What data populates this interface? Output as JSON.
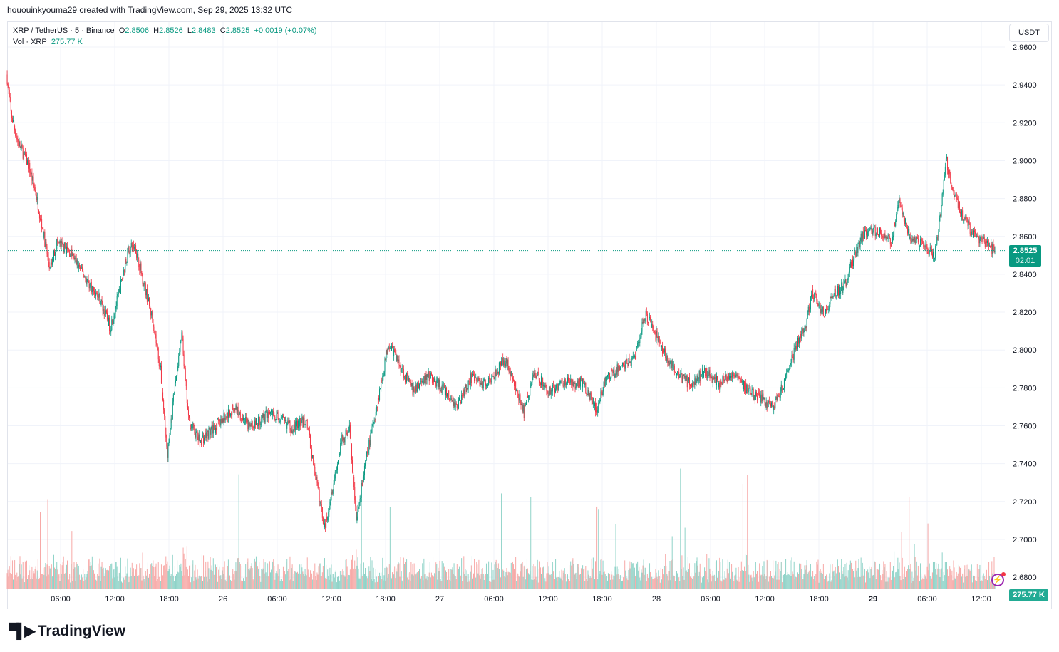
{
  "credit": "hououinkyouma29 created with TradingView.com, Sep 29, 2025 13:32 UTC",
  "legend": {
    "symbol": "XRP / TetherUS · 5 · Binance",
    "o_label": "O",
    "o": "2.8506",
    "h_label": "H",
    "h": "2.8526",
    "l_label": "L",
    "l": "2.8483",
    "c_label": "C",
    "c": "2.8525",
    "change": "+0.0019 (+0.07%)",
    "vol_label": "Vol · XRP",
    "vol": "275.77 K"
  },
  "currency_button": "USDT",
  "last_price": "2.8525",
  "countdown": "02:01",
  "volume_tag": "275.77 K",
  "logo": "TradingView",
  "colors": {
    "up": "#089981",
    "down": "#f23645",
    "vol_up": "#8fd3c8",
    "vol_down": "#f7a9a7",
    "accent": "#089981",
    "indicator": "#9c27b0"
  },
  "icons": {
    "alert": "lightning-bolt-icon",
    "logo": "tradingview-logo-icon"
  },
  "chart_data": {
    "type": "candlestick",
    "interval_minutes": 5,
    "ylim": [
      2.68,
      2.965
    ],
    "yticks": [
      "2.6800",
      "2.7000",
      "2.7200",
      "2.7400",
      "2.7600",
      "2.7800",
      "2.8000",
      "2.8200",
      "2.8400",
      "2.8600",
      "2.8800",
      "2.9000",
      "2.9200",
      "2.9400",
      "2.9600"
    ],
    "xticks": [
      {
        "label": "06:00",
        "t": "25 06:00"
      },
      {
        "label": "12:00",
        "t": "25 12:00"
      },
      {
        "label": "18:00",
        "t": "25 18:00"
      },
      {
        "label": "26",
        "t": "26 00:00"
      },
      {
        "label": "06:00",
        "t": "26 06:00"
      },
      {
        "label": "12:00",
        "t": "26 12:00"
      },
      {
        "label": "18:00",
        "t": "26 18:00"
      },
      {
        "label": "27",
        "t": "27 00:00"
      },
      {
        "label": "06:00",
        "t": "27 06:00"
      },
      {
        "label": "12:00",
        "t": "27 12:00"
      },
      {
        "label": "18:00",
        "t": "27 18:00"
      },
      {
        "label": "28",
        "t": "28 00:00"
      },
      {
        "label": "06:00",
        "t": "28 06:00"
      },
      {
        "label": "12:00",
        "t": "28 12:00"
      },
      {
        "label": "18:00",
        "t": "28 18:00"
      },
      {
        "label": "29",
        "t": "29 00:00"
      },
      {
        "label": "06:00",
        "t": "29 06:00"
      },
      {
        "label": "12:00",
        "t": "29 12:00"
      }
    ],
    "close_path": [
      [
        "25 00:05",
        2.9435
      ],
      [
        "25 00:30",
        2.925
      ],
      [
        "25 01:15",
        2.91
      ],
      [
        "25 02:25",
        2.898
      ],
      [
        "25 03:15",
        2.883
      ],
      [
        "25 04:00",
        2.864
      ],
      [
        "25 04:50",
        2.842
      ],
      [
        "25 05:35",
        2.857
      ],
      [
        "25 07:10",
        2.851
      ],
      [
        "25 08:45",
        2.838
      ],
      [
        "25 10:20",
        2.827
      ],
      [
        "25 11:30",
        2.812
      ],
      [
        "25 12:20",
        2.827
      ],
      [
        "25 13:30",
        2.853
      ],
      [
        "25 14:15",
        2.855
      ],
      [
        "25 15:05",
        2.838
      ],
      [
        "25 16:15",
        2.815
      ],
      [
        "25 17:05",
        2.789
      ],
      [
        "25 17:50",
        2.744
      ],
      [
        "25 18:40",
        2.781
      ],
      [
        "25 19:25",
        2.808
      ],
      [
        "25 20:10",
        2.763
      ],
      [
        "25 21:25",
        2.752
      ],
      [
        "25 23:00",
        2.759
      ],
      [
        "26 01:20",
        2.77
      ],
      [
        "26 02:55",
        2.759
      ],
      [
        "26 05:15",
        2.767
      ],
      [
        "26 07:40",
        2.759
      ],
      [
        "26 09:15",
        2.763
      ],
      [
        "26 10:00",
        2.74
      ],
      [
        "26 11:15",
        2.706
      ],
      [
        "26 12:00",
        2.725
      ],
      [
        "26 13:10",
        2.752
      ],
      [
        "26 14:00",
        2.759
      ],
      [
        "26 14:45",
        2.71
      ],
      [
        "26 15:55",
        2.744
      ],
      [
        "26 17:10",
        2.774
      ],
      [
        "26 18:20",
        2.804
      ],
      [
        "26 19:30",
        2.793
      ],
      [
        "26 21:05",
        2.778
      ],
      [
        "26 22:40",
        2.787
      ],
      [
        "27 00:15",
        2.78
      ],
      [
        "27 01:50",
        2.77
      ],
      [
        "27 03:25",
        2.785
      ],
      [
        "27 05:00",
        2.782
      ],
      [
        "27 07:20",
        2.795
      ],
      [
        "27 08:30",
        2.778
      ],
      [
        "27 09:20",
        2.767
      ],
      [
        "27 10:30",
        2.789
      ],
      [
        "27 12:05",
        2.778
      ],
      [
        "27 13:40",
        2.783
      ],
      [
        "27 16:00",
        2.782
      ],
      [
        "27 17:25",
        2.768
      ],
      [
        "27 18:25",
        2.785
      ],
      [
        "27 20:00",
        2.791
      ],
      [
        "27 21:35",
        2.796
      ],
      [
        "27 22:45",
        2.819
      ],
      [
        "27 23:30",
        2.812
      ],
      [
        "28 00:45",
        2.8
      ],
      [
        "28 02:15",
        2.787
      ],
      [
        "28 03:50",
        2.782
      ],
      [
        "28 05:25",
        2.789
      ],
      [
        "28 07:00",
        2.782
      ],
      [
        "28 08:35",
        2.789
      ],
      [
        "28 10:10",
        2.778
      ],
      [
        "28 11:45",
        2.774
      ],
      [
        "28 12:55",
        2.77
      ],
      [
        "28 14:10",
        2.782
      ],
      [
        "28 15:20",
        2.8
      ],
      [
        "28 16:30",
        2.812
      ],
      [
        "28 17:15",
        2.83
      ],
      [
        "28 18:30",
        2.819
      ],
      [
        "28 19:40",
        2.83
      ],
      [
        "28 20:50",
        2.834
      ],
      [
        "28 21:40",
        2.846
      ],
      [
        "28 22:50",
        2.861
      ],
      [
        "29 00:25",
        2.863
      ],
      [
        "29 02:00",
        2.857
      ],
      [
        "29 02:55",
        2.879
      ],
      [
        "29 04:00",
        2.861
      ],
      [
        "29 05:55",
        2.855
      ],
      [
        "29 06:45",
        2.849
      ],
      [
        "29 07:30",
        2.872
      ],
      [
        "29 08:05",
        2.902
      ],
      [
        "29 08:40",
        2.887
      ],
      [
        "29 09:50",
        2.872
      ],
      [
        "29 11:05",
        2.861
      ],
      [
        "29 12:15",
        2.857
      ],
      [
        "29 13:30",
        2.8525
      ]
    ]
  }
}
